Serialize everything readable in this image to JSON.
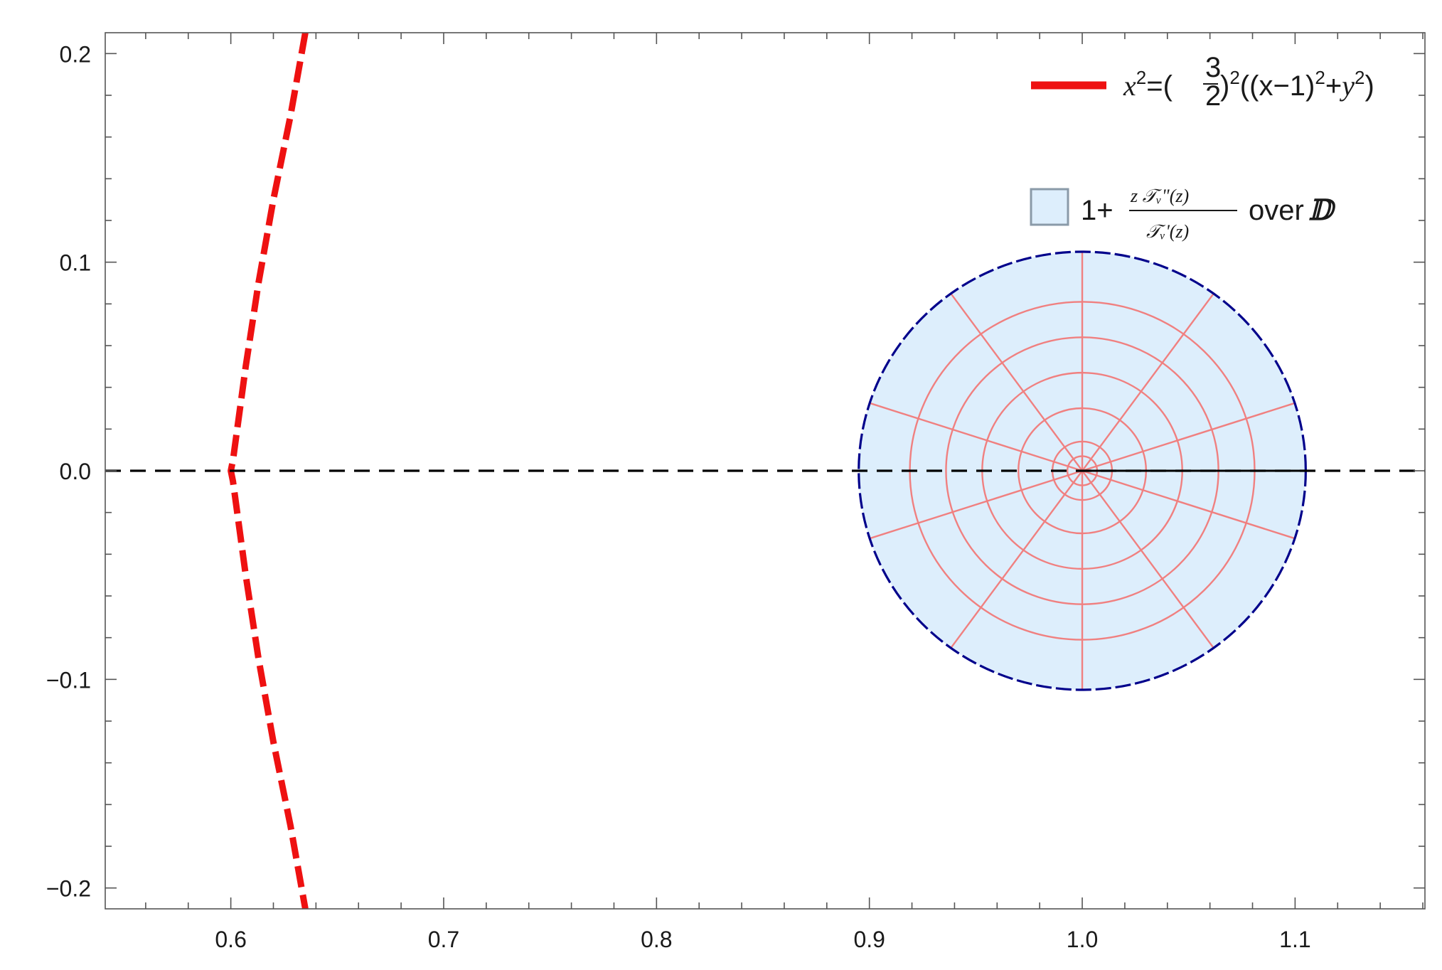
{
  "chart_data": {
    "type": "line",
    "title": "",
    "xlabel": "",
    "ylabel": "",
    "xlim": [
      0.541,
      1.161
    ],
    "ylim": [
      -0.21,
      0.21
    ],
    "x_ticks": [
      0.6,
      0.7,
      0.8,
      0.9,
      1.0,
      1.1
    ],
    "x_tick_labels": [
      "0.6",
      "0.7",
      "0.8",
      "0.9",
      "1.0",
      "1.1"
    ],
    "y_ticks": [
      0.2,
      0.1,
      0.0,
      -0.1,
      -0.2
    ],
    "y_tick_labels": [
      "0.2",
      "0.1",
      "0.0",
      "−0.1",
      "−0.2"
    ],
    "grid": false,
    "legend_position": "top-right",
    "series": [
      {
        "name": "x²=(3/2)²((x−1)²+y²)",
        "style": "dashed",
        "color": "#ee1111",
        "x": [
          0.635,
          0.628,
          0.62,
          0.613,
          0.607,
          0.603,
          0.601,
          0.6,
          0.601,
          0.603,
          0.607,
          0.613,
          0.62,
          0.628,
          0.635
        ],
        "y": [
          0.21,
          0.17,
          0.13,
          0.09,
          0.05,
          0.02,
          0.005,
          0.0,
          -0.005,
          -0.02,
          -0.05,
          -0.09,
          -0.13,
          -0.17,
          -0.21
        ]
      },
      {
        "name": "1+ zTᵥ\"(z)/Tᵥ'(z) over 𝔻",
        "type": "region",
        "center": [
          1.0,
          0.0
        ],
        "radius": 0.105,
        "fill": "#ddeefc",
        "boundary_color": "#00008b",
        "mesh_color": "#f08080",
        "mesh_circle_radii": [
          0.007,
          0.014,
          0.03,
          0.047,
          0.064,
          0.081
        ],
        "mesh_rays_degrees": [
          18,
          54,
          90,
          126,
          162,
          198,
          234,
          270,
          306,
          342
        ]
      }
    ],
    "reference_lines": [
      {
        "axis": "y",
        "value": 0.0,
        "style": "dashed",
        "color": "#000000"
      }
    ]
  },
  "legend": {
    "curve_prefix": "x",
    "curve_exp": "2",
    "curve_eq_open": "=(",
    "curve_frac_num": "3",
    "curve_frac_den": "2",
    "curve_close_exp": ")",
    "curve_exp2": "2",
    "curve_mid": "((x−1)",
    "curve_exp3": "2",
    "curve_plus": "+",
    "curve_y": "y",
    "curve_exp4": "2",
    "curve_end": ")",
    "region_one_plus": "1+",
    "region_num": "z 𝒯ᵥ\"(z)",
    "region_den": "𝒯ᵥ'(z)",
    "region_over": "over",
    "region_set": "𝔻"
  },
  "colors": {
    "curve": "#ee1111",
    "region_fill": "#ddeefc",
    "region_boundary": "#00008b",
    "mesh": "#f08080",
    "axis": "#555555"
  }
}
